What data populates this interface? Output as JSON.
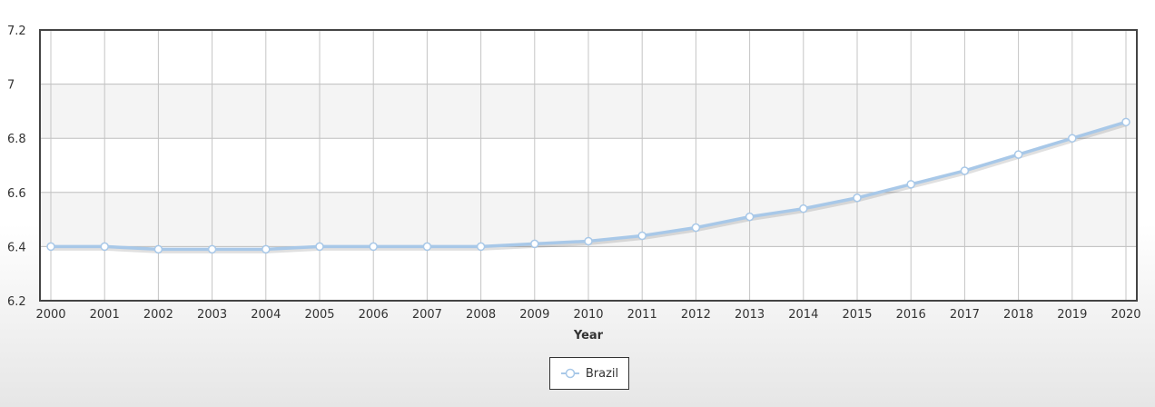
{
  "chart_data": {
    "type": "line",
    "title": "",
    "xlabel": "Year",
    "ylabel": "",
    "x": [
      "2000",
      "2001",
      "2002",
      "2003",
      "2004",
      "2005",
      "2006",
      "2007",
      "2008",
      "2009",
      "2010",
      "2011",
      "2012",
      "2013",
      "2014",
      "2015",
      "2016",
      "2017",
      "2018",
      "2019",
      "2020"
    ],
    "yticks": [
      "6.2",
      "6.4",
      "6.6",
      "6.8",
      "7",
      "7.2"
    ],
    "ylim": [
      6.2,
      7.2
    ],
    "grid": true,
    "legend_position": "bottom-center",
    "series": [
      {
        "name": "Brazil",
        "color": "#a8c8e8",
        "values": [
          6.4,
          6.4,
          6.39,
          6.39,
          6.39,
          6.4,
          6.4,
          6.4,
          6.4,
          6.41,
          6.42,
          6.44,
          6.47,
          6.51,
          6.54,
          6.58,
          6.63,
          6.68,
          6.74,
          6.8,
          6.86
        ]
      }
    ]
  }
}
